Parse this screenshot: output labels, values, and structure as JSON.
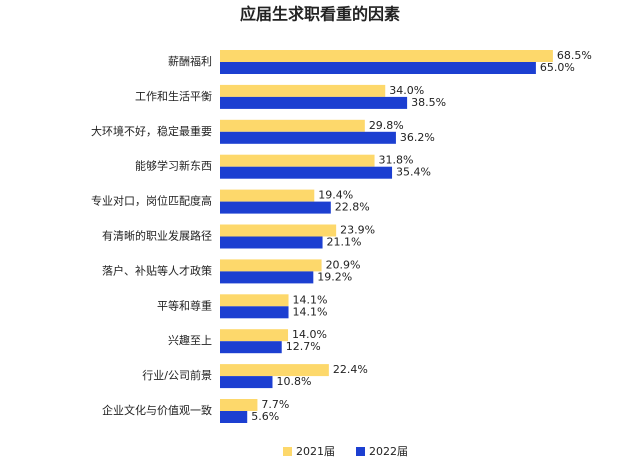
{
  "chart_data": {
    "type": "bar",
    "orientation": "horizontal",
    "title": "应届生求职看重的因素",
    "categories": [
      "薪酬福利",
      "工作和生活平衡",
      "大环境不好，稳定最重要",
      "能够学习新东西",
      "专业对口，岗位匹配度高",
      "有清晰的职业发展路径",
      "落户、补贴等人才政策",
      "平等和尊重",
      "兴趣至上",
      "行业/公司前景",
      "企业文化与价值观一致"
    ],
    "series": [
      {
        "name": "2021届",
        "color": "#fdd86b",
        "values": [
          68.5,
          34.0,
          29.8,
          31.8,
          19.4,
          23.9,
          20.9,
          14.1,
          14.0,
          22.4,
          7.7
        ],
        "value_labels": [
          "68.5%",
          "34.0%",
          "29.8%",
          "31.8%",
          "19.4%",
          "23.9%",
          "20.9%",
          "14.1%",
          "14.0%",
          "22.4%",
          "7.7%"
        ]
      },
      {
        "name": "2022届",
        "color": "#1c3fd1",
        "values": [
          65.0,
          38.5,
          36.2,
          35.4,
          22.8,
          21.1,
          19.2,
          14.1,
          12.7,
          10.8,
          5.6
        ],
        "value_labels": [
          "65.0%",
          "38.5%",
          "36.2%",
          "35.4%",
          "22.8%",
          "21.1%",
          "19.2%",
          "14.1%",
          "12.7%",
          "10.8%",
          "5.6%"
        ]
      }
    ],
    "legend": "bottom"
  }
}
